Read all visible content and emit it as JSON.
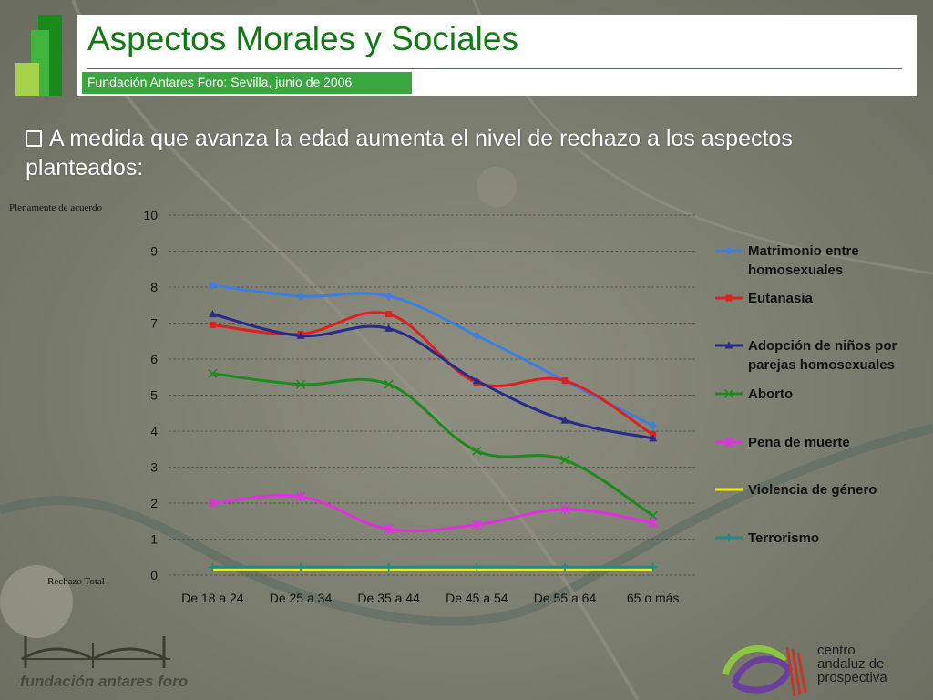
{
  "header": {
    "title": "Aspectos Morales y Sociales",
    "subtitle": "Fundación Antares Foro: Sevilla, junio de 2006"
  },
  "bullet": {
    "text": "A medida que avanza la edad aumenta el nivel de rechazo a los aspectos planteados:"
  },
  "chart_data": {
    "type": "line",
    "top_label": "Plenamente de acuerdo",
    "bottom_label": "Rechazo Total",
    "categories": [
      "De 18 a 24",
      "De 25  a 34",
      "De 35 a 44",
      "De 45 a 54",
      "De 55 a 64",
      "65 o más"
    ],
    "ylim": [
      0,
      10
    ],
    "yticks": [
      "0",
      "1",
      "2",
      "3",
      "4",
      "5",
      "6",
      "7",
      "8",
      "9",
      "10"
    ],
    "grid": true,
    "legend_position": "right",
    "series": [
      {
        "name": "Matrimonio entre homosexuales",
        "legend_lines": [
          "Matrimonio entre",
          "homosexuales"
        ],
        "color": "#3d7fe0",
        "marker": "diamond",
        "values": [
          8.05,
          7.75,
          7.75,
          6.65,
          5.4,
          4.15
        ]
      },
      {
        "name": "Eutanasia",
        "legend_lines": [
          "Eutanasia"
        ],
        "color": "#e02020",
        "marker": "square",
        "values": [
          6.95,
          6.7,
          7.25,
          5.35,
          5.4,
          3.9
        ]
      },
      {
        "name": "Adopción de niños por parejas homosexuales",
        "legend_lines": [
          "Adopción de niños por",
          "parejas homosexuales"
        ],
        "color": "#2a2a8a",
        "marker": "triangle",
        "values": [
          7.25,
          6.65,
          6.85,
          5.4,
          4.3,
          3.8
        ]
      },
      {
        "name": "Aborto",
        "legend_lines": [
          "Aborto"
        ],
        "color": "#1e8a1e",
        "marker": "x",
        "values": [
          5.6,
          5.3,
          5.3,
          3.45,
          3.2,
          1.65
        ]
      },
      {
        "name": "Pena de muerte",
        "legend_lines": [
          "Pena de muerte"
        ],
        "color": "#e030e0",
        "marker": "star",
        "values": [
          2.0,
          2.18,
          1.28,
          1.4,
          1.83,
          1.45
        ]
      },
      {
        "name": "Violencia de género",
        "legend_lines": [
          "Violencia de género"
        ],
        "color": "#f0ee10",
        "marker": "none",
        "values": [
          0.15,
          0.15,
          0.15,
          0.15,
          0.15,
          0.15
        ]
      },
      {
        "name": "Terrorismo",
        "legend_lines": [
          "Terrorismo"
        ],
        "color": "#1a8a8a",
        "marker": "plus",
        "values": [
          0.22,
          0.22,
          0.22,
          0.22,
          0.22,
          0.22
        ]
      }
    ]
  },
  "footer": {
    "left_brand": "fundación antares foro",
    "right_brand": [
      "centro",
      "andaluz de",
      "prospectiva"
    ]
  }
}
